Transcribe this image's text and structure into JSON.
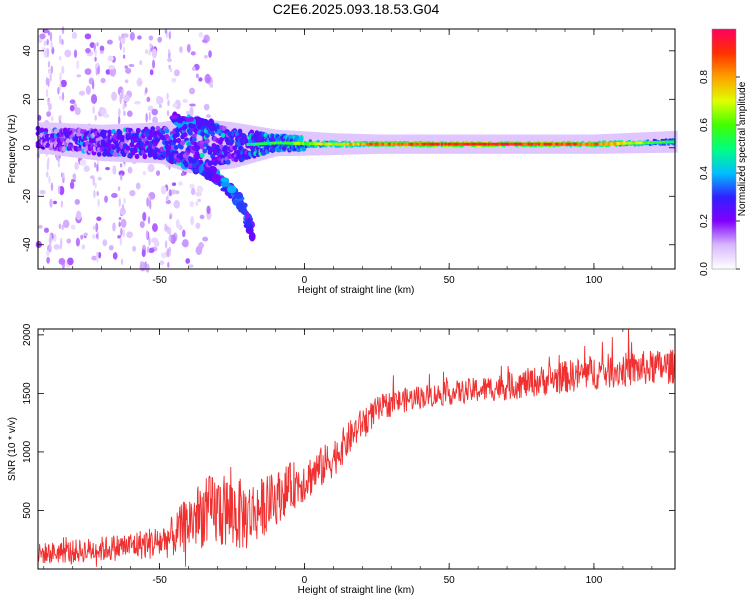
{
  "figure": {
    "title": "C2E6.2025.093.18.53.G04"
  },
  "chart_data": [
    {
      "type": "heatmap",
      "xlabel": "Height of straight line (km)",
      "ylabel": "Frequency (Hz)",
      "xlim": [
        -92,
        128
      ],
      "ylim": [
        -50,
        49
      ],
      "x_ticks": [
        -50,
        0,
        50,
        100
      ],
      "y_ticks": [
        -40,
        -20,
        0,
        20,
        40
      ],
      "colorbar": {
        "label": "Normalized spectral amplitude",
        "range": [
          0,
          1
        ],
        "ticks": [
          "0.0",
          "0.2",
          "0.4",
          "0.6",
          "0.8"
        ],
        "colors": [
          "#ffffff",
          "#d8b8ff",
          "#8000ff",
          "#3020ff",
          "#00c0ff",
          "#00ff80",
          "#40ff00",
          "#e0ff00",
          "#ffa000",
          "#ff3000",
          "#ff0060"
        ]
      },
      "ridge": [
        {
          "x": -90,
          "freq": 4,
          "spread": 4,
          "amplitude": 0.35
        },
        {
          "x": -70,
          "freq": 2,
          "spread": 5,
          "amplitude": 0.4
        },
        {
          "x": -50,
          "freq": 2,
          "spread": 6,
          "amplitude": 0.45
        },
        {
          "x": -40,
          "freq": 1,
          "spread": 9,
          "amplitude": 0.45
        },
        {
          "x": -25,
          "freq": 1,
          "spread": 7,
          "amplitude": 0.45
        },
        {
          "x": -10,
          "freq": 2,
          "spread": 3,
          "amplitude": 0.55
        },
        {
          "x": 10,
          "freq": 1.5,
          "spread": 2,
          "amplitude": 0.7
        },
        {
          "x": 25,
          "freq": 1.5,
          "spread": 1.5,
          "amplitude": 0.85
        },
        {
          "x": 60,
          "freq": 1.5,
          "spread": 1.5,
          "amplitude": 0.95
        },
        {
          "x": 100,
          "freq": 1.5,
          "spread": 1.5,
          "amplitude": 0.85
        },
        {
          "x": 128,
          "freq": 2.5,
          "spread": 2,
          "amplitude": 0.5
        }
      ],
      "lower_branch": [
        {
          "x": -50,
          "freq": -2
        },
        {
          "x": -40,
          "freq": -6
        },
        {
          "x": -30,
          "freq": -12
        },
        {
          "x": -22,
          "freq": -22
        },
        {
          "x": -18,
          "freq": -35
        }
      ],
      "upper_branch": [
        {
          "x": -45,
          "freq": 12
        },
        {
          "x": -35,
          "freq": 9
        },
        {
          "x": -25,
          "freq": 6
        }
      ]
    },
    {
      "type": "line",
      "xlabel": "Height of straight line (km)",
      "ylabel": "SNR (10 * v/v)",
      "xlim": [
        -92,
        128
      ],
      "ylim": [
        0,
        2050
      ],
      "x_ticks": [
        -50,
        0,
        50,
        100
      ],
      "y_ticks": [
        500,
        1000,
        1500,
        2000
      ],
      "color": "#f03030",
      "series": [
        {
          "x": [
            -92,
            -80,
            -70,
            -60,
            -50,
            -45,
            -40,
            -35,
            -30,
            -25,
            -20,
            -15,
            -10,
            -5,
            0,
            5,
            10,
            15,
            20,
            25,
            30,
            40,
            50,
            60,
            70,
            80,
            90,
            100,
            110,
            120,
            128
          ],
          "mean": [
            130,
            150,
            170,
            200,
            230,
            280,
            400,
            480,
            500,
            480,
            450,
            520,
            600,
            700,
            760,
            850,
            950,
            1100,
            1250,
            1350,
            1420,
            1470,
            1500,
            1530,
            1560,
            1600,
            1640,
            1680,
            1700,
            1720,
            1730
          ],
          "noise": [
            90,
            100,
            110,
            120,
            150,
            180,
            250,
            300,
            330,
            330,
            300,
            260,
            230,
            210,
            190,
            180,
            170,
            150,
            130,
            120,
            110,
            100,
            100,
            110,
            120,
            130,
            140,
            150,
            150,
            150,
            150
          ]
        }
      ]
    }
  ]
}
